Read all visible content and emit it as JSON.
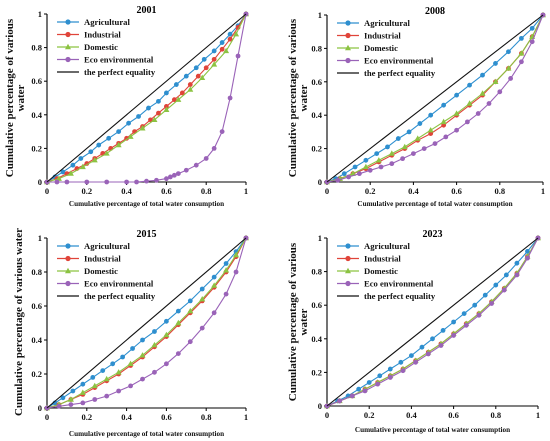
{
  "colors": {
    "agricultural": "#2e8fcf",
    "industrial": "#e0443a",
    "domestic": "#8cc342",
    "eco": "#9a63b8",
    "equality": "#111111"
  },
  "chart_data": [
    {
      "type": "line",
      "title": "2001",
      "xlabel": "Cumulative percentage of total water consumption",
      "ylabel": "Cumulative percentage of various water",
      "xlim": [
        0,
        1
      ],
      "ylim": [
        0,
        1
      ],
      "xticks": [
        "0",
        "0.2",
        "0.4",
        "0.6",
        "0.8",
        "1"
      ],
      "yticks": [
        "0",
        "0.2",
        "0.4",
        "0.6",
        "0.8",
        "1"
      ],
      "legend": "top-left",
      "series": [
        {
          "name": "Agricultural",
          "color_key": "agricultural",
          "marker": "circle",
          "x": [
            0,
            0.04,
            0.08,
            0.13,
            0.17,
            0.22,
            0.26,
            0.31,
            0.36,
            0.41,
            0.46,
            0.51,
            0.56,
            0.6,
            0.65,
            0.7,
            0.75,
            0.79,
            0.84,
            0.88,
            0.92,
            0.96,
            1
          ],
          "y": [
            0,
            0.03,
            0.06,
            0.1,
            0.14,
            0.18,
            0.22,
            0.26,
            0.3,
            0.35,
            0.39,
            0.44,
            0.48,
            0.53,
            0.58,
            0.63,
            0.68,
            0.73,
            0.78,
            0.83,
            0.88,
            0.93,
            1
          ]
        },
        {
          "name": "Industrial",
          "color_key": "industrial",
          "marker": "circle",
          "x": [
            0,
            0.05,
            0.1,
            0.15,
            0.2,
            0.24,
            0.28,
            0.32,
            0.36,
            0.4,
            0.44,
            0.48,
            0.52,
            0.56,
            0.6,
            0.64,
            0.68,
            0.72,
            0.76,
            0.8,
            0.84,
            0.88,
            0.92,
            0.96,
            1
          ],
          "y": [
            0,
            0.02,
            0.05,
            0.08,
            0.11,
            0.14,
            0.17,
            0.2,
            0.23,
            0.26,
            0.3,
            0.33,
            0.37,
            0.41,
            0.45,
            0.49,
            0.53,
            0.58,
            0.63,
            0.68,
            0.73,
            0.79,
            0.85,
            0.92,
            1
          ]
        },
        {
          "name": "Domestic",
          "color_key": "domestic",
          "marker": "triangle",
          "x": [
            0,
            0.06,
            0.12,
            0.18,
            0.24,
            0.3,
            0.36,
            0.42,
            0.48,
            0.54,
            0.6,
            0.66,
            0.72,
            0.78,
            0.84,
            0.9,
            0.95,
            1
          ],
          "y": [
            0,
            0.02,
            0.05,
            0.09,
            0.13,
            0.17,
            0.22,
            0.27,
            0.32,
            0.37,
            0.43,
            0.49,
            0.55,
            0.62,
            0.7,
            0.78,
            0.88,
            1
          ]
        },
        {
          "name": "Eco environmental",
          "color_key": "eco",
          "marker": "circle",
          "x": [
            0,
            0.05,
            0.1,
            0.2,
            0.3,
            0.4,
            0.45,
            0.5,
            0.55,
            0.6,
            0.62,
            0.64,
            0.66,
            0.7,
            0.75,
            0.8,
            0.84,
            0.88,
            0.92,
            0.96,
            1
          ],
          "y": [
            0,
            0,
            0,
            0,
            0,
            0,
            0,
            0.005,
            0.01,
            0.02,
            0.03,
            0.04,
            0.05,
            0.07,
            0.1,
            0.14,
            0.2,
            0.3,
            0.5,
            0.75,
            1
          ]
        },
        {
          "name": "the perfect equality",
          "color_key": "equality",
          "marker": "none",
          "x": [
            0,
            1
          ],
          "y": [
            0,
            1
          ]
        }
      ]
    },
    {
      "type": "line",
      "title": "2008",
      "xlabel": "Cumulative percentage of total water consumption",
      "ylabel": "Cumulative percentage of various water",
      "xlim": [
        0,
        1
      ],
      "ylim": [
        0,
        1
      ],
      "xticks": [
        "0",
        "0.2",
        "0.4",
        "0.6",
        "0.8",
        "1"
      ],
      "yticks": [
        "0",
        "0.2",
        "0.4",
        "0.6",
        "0.8",
        "1"
      ],
      "legend": "top-left",
      "series": [
        {
          "name": "Agricultural",
          "color_key": "agricultural",
          "marker": "circle",
          "x": [
            0,
            0.04,
            0.08,
            0.13,
            0.18,
            0.23,
            0.28,
            0.33,
            0.38,
            0.43,
            0.48,
            0.54,
            0.6,
            0.66,
            0.72,
            0.78,
            0.84,
            0.9,
            0.95,
            1
          ],
          "y": [
            0,
            0.02,
            0.05,
            0.09,
            0.13,
            0.17,
            0.21,
            0.26,
            0.3,
            0.35,
            0.4,
            0.46,
            0.52,
            0.58,
            0.64,
            0.71,
            0.78,
            0.86,
            0.92,
            1
          ]
        },
        {
          "name": "Industrial",
          "color_key": "industrial",
          "marker": "circle",
          "x": [
            0,
            0.06,
            0.12,
            0.18,
            0.24,
            0.3,
            0.36,
            0.42,
            0.48,
            0.54,
            0.6,
            0.66,
            0.72,
            0.78,
            0.84,
            0.9,
            0.95,
            1
          ],
          "y": [
            0,
            0.02,
            0.05,
            0.08,
            0.12,
            0.16,
            0.2,
            0.25,
            0.29,
            0.34,
            0.4,
            0.46,
            0.52,
            0.6,
            0.68,
            0.77,
            0.87,
            1
          ]
        },
        {
          "name": "Domestic",
          "color_key": "domestic",
          "marker": "triangle",
          "x": [
            0,
            0.06,
            0.12,
            0.18,
            0.24,
            0.3,
            0.36,
            0.42,
            0.48,
            0.54,
            0.6,
            0.66,
            0.72,
            0.78,
            0.84,
            0.9,
            0.95,
            1
          ],
          "y": [
            0,
            0.02,
            0.05,
            0.09,
            0.13,
            0.17,
            0.21,
            0.26,
            0.31,
            0.36,
            0.41,
            0.47,
            0.53,
            0.6,
            0.68,
            0.77,
            0.87,
            1
          ]
        },
        {
          "name": "Eco environmental",
          "color_key": "eco",
          "marker": "circle",
          "x": [
            0,
            0.05,
            0.1,
            0.15,
            0.2,
            0.25,
            0.3,
            0.35,
            0.4,
            0.45,
            0.5,
            0.55,
            0.6,
            0.65,
            0.7,
            0.75,
            0.8,
            0.85,
            0.9,
            0.95,
            1
          ],
          "y": [
            0,
            0.01,
            0.03,
            0.05,
            0.07,
            0.09,
            0.11,
            0.14,
            0.17,
            0.2,
            0.23,
            0.27,
            0.31,
            0.36,
            0.41,
            0.47,
            0.54,
            0.62,
            0.72,
            0.84,
            1
          ]
        },
        {
          "name": "the perfect equality",
          "color_key": "equality",
          "marker": "none",
          "x": [
            0,
            1
          ],
          "y": [
            0,
            1
          ]
        }
      ]
    },
    {
      "type": "line",
      "title": "2015",
      "xlabel": "Cumulative percentage of total water consumption",
      "ylabel": "Cumulative percentage of various water",
      "xlim": [
        0,
        1
      ],
      "ylim": [
        0,
        1
      ],
      "xticks": [
        "0",
        "0.2",
        "0.4",
        "0.6",
        "0.8",
        "1"
      ],
      "yticks": [
        "0",
        "0.2",
        "0.4",
        "0.6",
        "0.8",
        "1"
      ],
      "legend": "top-left",
      "series": [
        {
          "name": "Agricultural",
          "color_key": "agricultural",
          "marker": "circle",
          "x": [
            0,
            0.04,
            0.08,
            0.13,
            0.18,
            0.23,
            0.28,
            0.33,
            0.38,
            0.43,
            0.48,
            0.54,
            0.6,
            0.66,
            0.72,
            0.78,
            0.84,
            0.9,
            0.95,
            1
          ],
          "y": [
            0,
            0.03,
            0.06,
            0.1,
            0.14,
            0.18,
            0.22,
            0.26,
            0.3,
            0.35,
            0.4,
            0.45,
            0.51,
            0.57,
            0.63,
            0.7,
            0.77,
            0.85,
            0.92,
            1
          ]
        },
        {
          "name": "Industrial",
          "color_key": "industrial",
          "marker": "circle",
          "x": [
            0,
            0.06,
            0.12,
            0.18,
            0.24,
            0.3,
            0.36,
            0.42,
            0.48,
            0.54,
            0.6,
            0.66,
            0.72,
            0.78,
            0.84,
            0.9,
            0.95,
            1
          ],
          "y": [
            0,
            0.02,
            0.05,
            0.08,
            0.12,
            0.16,
            0.2,
            0.25,
            0.3,
            0.36,
            0.42,
            0.49,
            0.56,
            0.63,
            0.71,
            0.8,
            0.89,
            1
          ]
        },
        {
          "name": "Domestic",
          "color_key": "domestic",
          "marker": "triangle",
          "x": [
            0,
            0.06,
            0.12,
            0.18,
            0.24,
            0.3,
            0.36,
            0.42,
            0.48,
            0.54,
            0.6,
            0.66,
            0.72,
            0.78,
            0.84,
            0.9,
            0.95,
            1
          ],
          "y": [
            0,
            0.02,
            0.05,
            0.09,
            0.13,
            0.17,
            0.21,
            0.26,
            0.31,
            0.37,
            0.43,
            0.5,
            0.57,
            0.64,
            0.72,
            0.81,
            0.9,
            1
          ]
        },
        {
          "name": "Eco environmental",
          "color_key": "eco",
          "marker": "circle",
          "x": [
            0,
            0.06,
            0.12,
            0.18,
            0.24,
            0.3,
            0.36,
            0.42,
            0.48,
            0.54,
            0.6,
            0.66,
            0.72,
            0.78,
            0.84,
            0.9,
            0.95,
            1
          ],
          "y": [
            0,
            0.01,
            0.02,
            0.03,
            0.05,
            0.07,
            0.1,
            0.13,
            0.17,
            0.21,
            0.26,
            0.32,
            0.39,
            0.47,
            0.56,
            0.67,
            0.8,
            1
          ]
        },
        {
          "name": "the perfect equality",
          "color_key": "equality",
          "marker": "none",
          "x": [
            0,
            1
          ],
          "y": [
            0,
            1
          ]
        }
      ]
    },
    {
      "type": "line",
      "title": "2023",
      "xlabel": "Cumulative percentage of total water consumption",
      "ylabel": "Cumulative percentage of various water",
      "xlim": [
        0,
        1
      ],
      "ylim": [
        0,
        1
      ],
      "xticks": [
        "0",
        "0.2",
        "0.4",
        "0.6",
        "0.8",
        "1"
      ],
      "yticks": [
        "0",
        "0.2",
        "0.4",
        "0.6",
        "0.8",
        "1"
      ],
      "legend": "top-left",
      "series": [
        {
          "name": "Agricultural",
          "color_key": "agricultural",
          "marker": "circle",
          "x": [
            0,
            0.05,
            0.1,
            0.15,
            0.2,
            0.25,
            0.3,
            0.35,
            0.4,
            0.45,
            0.5,
            0.55,
            0.6,
            0.65,
            0.7,
            0.75,
            0.8,
            0.85,
            0.9,
            0.95,
            1
          ],
          "y": [
            0,
            0.03,
            0.06,
            0.1,
            0.14,
            0.18,
            0.22,
            0.26,
            0.3,
            0.35,
            0.4,
            0.45,
            0.5,
            0.55,
            0.6,
            0.66,
            0.72,
            0.78,
            0.85,
            0.92,
            1
          ]
        },
        {
          "name": "Industrial",
          "color_key": "industrial",
          "marker": "circle",
          "x": [
            0,
            0.06,
            0.12,
            0.18,
            0.24,
            0.3,
            0.36,
            0.42,
            0.48,
            0.54,
            0.6,
            0.66,
            0.72,
            0.78,
            0.84,
            0.9,
            0.95,
            1
          ],
          "y": [
            0,
            0.03,
            0.06,
            0.1,
            0.14,
            0.18,
            0.22,
            0.27,
            0.32,
            0.37,
            0.43,
            0.49,
            0.55,
            0.62,
            0.7,
            0.79,
            0.89,
            1
          ]
        },
        {
          "name": "Domestic",
          "color_key": "domestic",
          "marker": "triangle",
          "x": [
            0,
            0.06,
            0.12,
            0.18,
            0.24,
            0.3,
            0.36,
            0.42,
            0.48,
            0.54,
            0.6,
            0.66,
            0.72,
            0.78,
            0.84,
            0.9,
            0.95,
            1
          ],
          "y": [
            0,
            0.03,
            0.06,
            0.1,
            0.14,
            0.18,
            0.22,
            0.27,
            0.32,
            0.37,
            0.43,
            0.49,
            0.55,
            0.62,
            0.7,
            0.79,
            0.89,
            1
          ]
        },
        {
          "name": "Eco environmental",
          "color_key": "eco",
          "marker": "circle",
          "x": [
            0,
            0.06,
            0.12,
            0.18,
            0.24,
            0.3,
            0.36,
            0.42,
            0.48,
            0.54,
            0.6,
            0.66,
            0.72,
            0.78,
            0.84,
            0.9,
            0.95,
            1
          ],
          "y": [
            0,
            0.03,
            0.06,
            0.09,
            0.13,
            0.17,
            0.21,
            0.26,
            0.31,
            0.36,
            0.42,
            0.48,
            0.54,
            0.61,
            0.69,
            0.78,
            0.88,
            1
          ]
        },
        {
          "name": "the perfect equality",
          "color_key": "equality",
          "marker": "none",
          "x": [
            0,
            1
          ],
          "y": [
            0,
            1
          ]
        }
      ]
    }
  ]
}
